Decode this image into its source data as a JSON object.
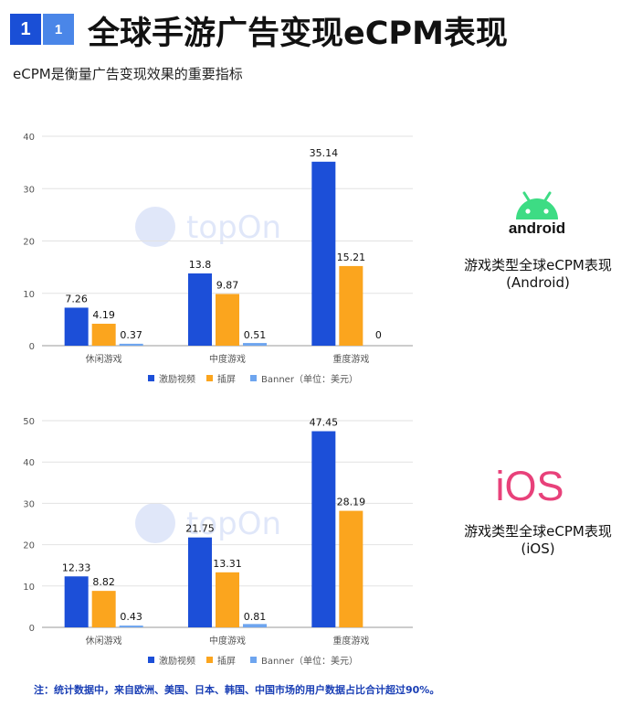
{
  "header": {
    "badge_primary": "1",
    "badge_secondary": "1",
    "title": "全球手游广告变现eCPM表现",
    "subtitle": "eCPM是衡量广告变现效果的重要指标"
  },
  "watermark": {
    "text": "topOn"
  },
  "colors": {
    "rewarded": "#1c4fd8",
    "interstitial": "#fba51e",
    "banner": "#6ea5ef"
  },
  "android": {
    "logo_text": "android",
    "caption_line1": "游戏类型全球eCPM表现",
    "caption_line2": "(Android)"
  },
  "ios": {
    "logo_text": "iOS",
    "caption_line1": "游戏类型全球eCPM表现",
    "caption_line2": "(iOS)"
  },
  "footnote": "注：统计数据中，来自欧洲、美国、日本、韩国、中国市场的用户数据占比合计超过90%。",
  "chart_data": [
    {
      "type": "bar",
      "title": "游戏类型全球eCPM表现 (Android)",
      "categories": [
        "休闲游戏",
        "中度游戏",
        "重度游戏"
      ],
      "series": [
        {
          "name": "激励视频",
          "values": [
            7.26,
            13.8,
            35.14
          ],
          "labels": [
            "7.26",
            "13.8",
            "35.14"
          ]
        },
        {
          "name": "插屏",
          "values": [
            4.19,
            9.87,
            15.21
          ],
          "labels": [
            "4.19",
            "9.87",
            "15.21"
          ]
        },
        {
          "name": "Banner",
          "values": [
            0.37,
            0.51,
            0
          ],
          "labels": [
            "0.37",
            "0.51",
            "0"
          ]
        }
      ],
      "ylim": [
        0,
        40
      ],
      "yticks": [
        0,
        10,
        20,
        30,
        40
      ],
      "unit_note": "（单位：美元）",
      "grid": true,
      "legend": "bottom"
    },
    {
      "type": "bar",
      "title": "游戏类型全球eCPM表现 (iOS)",
      "categories": [
        "休闲游戏",
        "中度游戏",
        "重度游戏"
      ],
      "series": [
        {
          "name": "激励视频",
          "values": [
            12.33,
            21.75,
            47.45
          ],
          "labels": [
            "12.33",
            "21.75",
            "47.45"
          ]
        },
        {
          "name": "插屏",
          "values": [
            8.82,
            13.31,
            28.19
          ],
          "labels": [
            "8.82",
            "13.31",
            "28.19"
          ]
        },
        {
          "name": "Banner",
          "values": [
            0.43,
            0.81,
            null
          ],
          "labels": [
            "0.43",
            "0.81",
            ""
          ]
        }
      ],
      "ylim": [
        0,
        50
      ],
      "yticks": [
        0,
        10,
        20,
        30,
        40,
        50
      ],
      "unit_note": "（单位：美元）",
      "grid": true,
      "legend": "bottom"
    }
  ]
}
